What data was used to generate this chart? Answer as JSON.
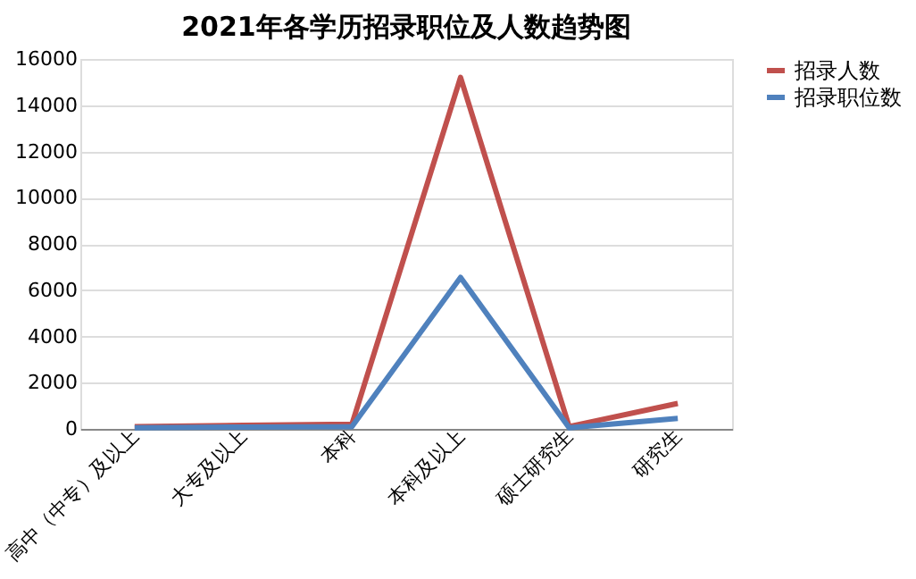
{
  "chart_data": {
    "type": "line",
    "title": "2021年各学历招录职位及人数趋势图",
    "categories": [
      "高中（中专）及以上",
      "大专及以上",
      "本科",
      "本科及以上",
      "硕士研究生",
      "研究生"
    ],
    "series": [
      {
        "name": "招录人数",
        "color": "#c0504d",
        "values": [
          100,
          150,
          200,
          15200,
          100,
          1100
        ]
      },
      {
        "name": "招录职位数",
        "color": "#4f81bd",
        "values": [
          50,
          80,
          100,
          6550,
          50,
          450
        ]
      }
    ],
    "ylim": [
      0,
      16000
    ],
    "yticks": [
      0,
      2000,
      4000,
      6000,
      8000,
      10000,
      12000,
      14000,
      16000
    ],
    "grid": "y",
    "legend": "right",
    "marker": "none",
    "line_style": "solid"
  }
}
